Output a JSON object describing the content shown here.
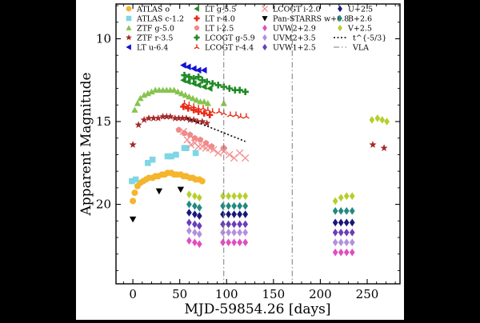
{
  "chart_data": {
    "type": "scatter",
    "xlabel": "MJD-59854.26 [days]",
    "ylabel": "Apparent Magnitude",
    "xlim": [
      -18,
      285
    ],
    "ylim": [
      24.8,
      7.9
    ],
    "y_inverted": true,
    "xticks": [
      0,
      50,
      100,
      150,
      200,
      250
    ],
    "yticks": [
      10,
      15,
      20
    ],
    "grid": false,
    "legend_position": "top",
    "series": [
      {
        "name": "ATLAS o",
        "marker": "circle",
        "color": "#f5b52c",
        "x": [
          0,
          2,
          5,
          8,
          11,
          14,
          17,
          21,
          24,
          27,
          31,
          34,
          37,
          41,
          44,
          47,
          51,
          54,
          57,
          61,
          64,
          67,
          71,
          74
        ],
        "y": [
          19.8,
          19.3,
          18.9,
          18.7,
          18.6,
          18.5,
          18.4,
          18.4,
          18.3,
          18.3,
          18.2,
          18.2,
          18.1,
          18.1,
          18.2,
          18.2,
          18.2,
          18.3,
          18.3,
          18.4,
          18.4,
          18.5,
          18.5,
          18.6
        ]
      },
      {
        "name": "ATLAS c-1.2",
        "marker": "square",
        "color": "#7fd6e4",
        "x": [
          -1,
          3,
          16,
          21,
          37,
          41,
          46,
          55,
          57,
          67
        ],
        "y": [
          18.6,
          18.5,
          17.5,
          17.3,
          17.1,
          17.1,
          17.0,
          16.6,
          16.6,
          16.9
        ]
      },
      {
        "name": "ZTF g-5.0",
        "marker": "triangle",
        "color": "#86c44e",
        "x": [
          2,
          5,
          8,
          12,
          16,
          20,
          24,
          28,
          32,
          36,
          40,
          44,
          48,
          52,
          56,
          60,
          64,
          68,
          72,
          76,
          80,
          97
        ],
        "y": [
          14.3,
          13.9,
          13.6,
          13.4,
          13.3,
          13.2,
          13.1,
          13.1,
          13.1,
          13.1,
          13.1,
          13.1,
          13.2,
          13.3,
          13.4,
          13.5,
          13.6,
          13.7,
          13.8,
          13.8,
          13.9,
          13.9
        ]
      },
      {
        "name": "ZTF r-3.5",
        "marker": "star",
        "color": "#a52a2a",
        "x": [
          0,
          6,
          12,
          17,
          22,
          27,
          32,
          36,
          40,
          45,
          49,
          53,
          57,
          61,
          65,
          69,
          74,
          79,
          256,
          268
        ],
        "y": [
          16.4,
          15.2,
          14.9,
          14.8,
          14.8,
          14.8,
          14.7,
          14.7,
          14.7,
          14.8,
          14.8,
          14.8,
          14.8,
          14.9,
          14.9,
          15.0,
          15.0,
          15.1,
          16.4,
          16.6
        ]
      },
      {
        "name": "LT u-6.4",
        "marker": "triangle-left",
        "color": "#1111d6",
        "x": [
          54,
          59,
          65,
          70,
          76
        ],
        "y": [
          11.6,
          11.7,
          11.8,
          11.9,
          11.9
        ]
      },
      {
        "name": "LT g-5.5",
        "marker": "triangle-left",
        "color": "#1f8a24",
        "x": [
          54,
          59,
          65,
          70,
          76,
          82
        ],
        "y": [
          12.5,
          12.6,
          12.7,
          12.8,
          12.9,
          13.0
        ]
      },
      {
        "name": "LT r-4.0",
        "marker": "plus",
        "color": "#e82a17",
        "x": [
          54,
          59,
          65,
          70,
          76,
          82
        ],
        "y": [
          14.1,
          14.2,
          14.3,
          14.4,
          14.5,
          14.6
        ]
      },
      {
        "name": "LT i-2.5",
        "marker": "pentagon",
        "color": "#f08989",
        "x": [
          49,
          55,
          61,
          66,
          72,
          78,
          84,
          97
        ],
        "y": [
          15.5,
          15.7,
          15.8,
          16.0,
          16.1,
          16.3,
          16.5,
          16.6
        ]
      },
      {
        "name": "LCOGT g-5.9",
        "marker": "plus",
        "color": "#1f8a24",
        "x": [
          55,
          60,
          65,
          70,
          74,
          79,
          85,
          91,
          97,
          103,
          109,
          114,
          120
        ],
        "y": [
          12.2,
          12.3,
          12.4,
          12.3,
          12.5,
          12.6,
          12.7,
          12.8,
          12.9,
          13.0,
          13.1,
          13.1,
          13.2
        ]
      },
      {
        "name": "LCOGT r-4.4",
        "marker": "tri",
        "color": "#e82a17",
        "x": [
          55,
          60,
          65,
          70,
          75,
          80,
          85,
          92,
          97,
          104,
          110,
          115,
          121
        ],
        "y": [
          13.9,
          14.0,
          14.1,
          14.2,
          14.2,
          14.3,
          14.4,
          14.4,
          14.5,
          14.6,
          14.6,
          14.7,
          14.7
        ]
      },
      {
        "name": "LCOGT i-2.0",
        "marker": "x",
        "color": "#f28d8d",
        "x": [
          54,
          58,
          62,
          66,
          70,
          74,
          78,
          82,
          86,
          91,
          97,
          103,
          108,
          114,
          120
        ],
        "y": [
          15.6,
          16.1,
          16.4,
          16.3,
          16.5,
          16.5,
          16.6,
          16.6,
          16.7,
          16.9,
          16.8,
          17.0,
          17.2,
          16.9,
          17.2
        ]
      },
      {
        "name": "Pan-STARRS w+0.8",
        "marker": "triangle-down",
        "color": "#000000",
        "x": [
          0,
          28,
          51
        ],
        "y": [
          20.9,
          19.2,
          19.1
        ]
      },
      {
        "name": "UVW2+2.9",
        "marker": "diamond",
        "color": "#e24dc0",
        "x": [
          60,
          66,
          71,
          96,
          102,
          108,
          114,
          120,
          216,
          222,
          228,
          234
        ],
        "y": [
          22.2,
          22.3,
          22.4,
          22.3,
          22.3,
          22.3,
          22.3,
          22.3,
          22.9,
          22.9,
          22.9,
          22.9
        ]
      },
      {
        "name": "UVM2+3.5",
        "marker": "diamond",
        "color": "#b291dc",
        "x": [
          60,
          66,
          71,
          96,
          102,
          108,
          114,
          120,
          216,
          222,
          228,
          234
        ],
        "y": [
          21.6,
          21.7,
          21.8,
          21.7,
          21.7,
          21.7,
          21.7,
          21.7,
          22.3,
          22.3,
          22.3,
          22.3
        ]
      },
      {
        "name": "UVW1+2.5",
        "marker": "diamond",
        "color": "#6b3fb8",
        "x": [
          60,
          66,
          71,
          96,
          102,
          108,
          114,
          120,
          216,
          222,
          228,
          234
        ],
        "y": [
          21.1,
          21.2,
          21.3,
          21.2,
          21.2,
          21.2,
          21.2,
          21.2,
          21.7,
          21.7,
          21.7,
          21.7
        ]
      },
      {
        "name": "U+2.5",
        "marker": "diamond",
        "color": "#18187a",
        "x": [
          60,
          66,
          71,
          96,
          102,
          108,
          114,
          120,
          216,
          222,
          228,
          234
        ],
        "y": [
          20.5,
          20.6,
          20.7,
          20.6,
          20.6,
          20.6,
          20.6,
          20.6,
          21.1,
          21.1,
          21.1,
          21.1
        ]
      },
      {
        "name": "B+2.6",
        "marker": "diamond",
        "color": "#1f8a82",
        "x": [
          60,
          66,
          71,
          96,
          102,
          108,
          114,
          120,
          216,
          222,
          228,
          234
        ],
        "y": [
          20.0,
          20.1,
          20.2,
          20.1,
          20.1,
          20.1,
          20.1,
          20.1,
          20.4,
          20.4,
          20.4,
          20.4
        ]
      },
      {
        "name": "V+2.5",
        "marker": "diamond",
        "color": "#b5cf2c",
        "x": [
          60,
          66,
          71,
          96,
          102,
          108,
          114,
          120,
          216,
          222,
          228,
          234,
          255,
          261,
          266,
          271
        ],
        "y": [
          19.4,
          19.5,
          19.6,
          19.5,
          19.5,
          19.5,
          19.5,
          19.5,
          19.8,
          19.6,
          19.5,
          19.5,
          14.9,
          14.8,
          14.9,
          15.0
        ]
      }
    ],
    "power_law": {
      "label": "t^{-5/3}",
      "x_range": [
        58,
        120
      ],
      "y_start": 14.8,
      "y_end": 16.2
    },
    "vla_lines": {
      "label": "VLA",
      "x": [
        97,
        170
      ]
    }
  }
}
